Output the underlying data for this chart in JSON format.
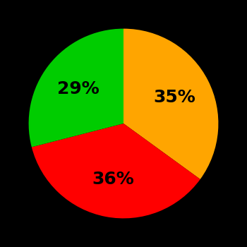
{
  "slices": [
    35,
    36,
    29
  ],
  "colors": [
    "#FFA500",
    "#FF0000",
    "#00CC00"
  ],
  "labels": [
    "35%",
    "36%",
    "29%"
  ],
  "background_color": "#000000",
  "label_fontsize": 18,
  "label_fontweight": "bold",
  "startangle": 90,
  "figsize": [
    3.5,
    3.5
  ],
  "dpi": 100
}
